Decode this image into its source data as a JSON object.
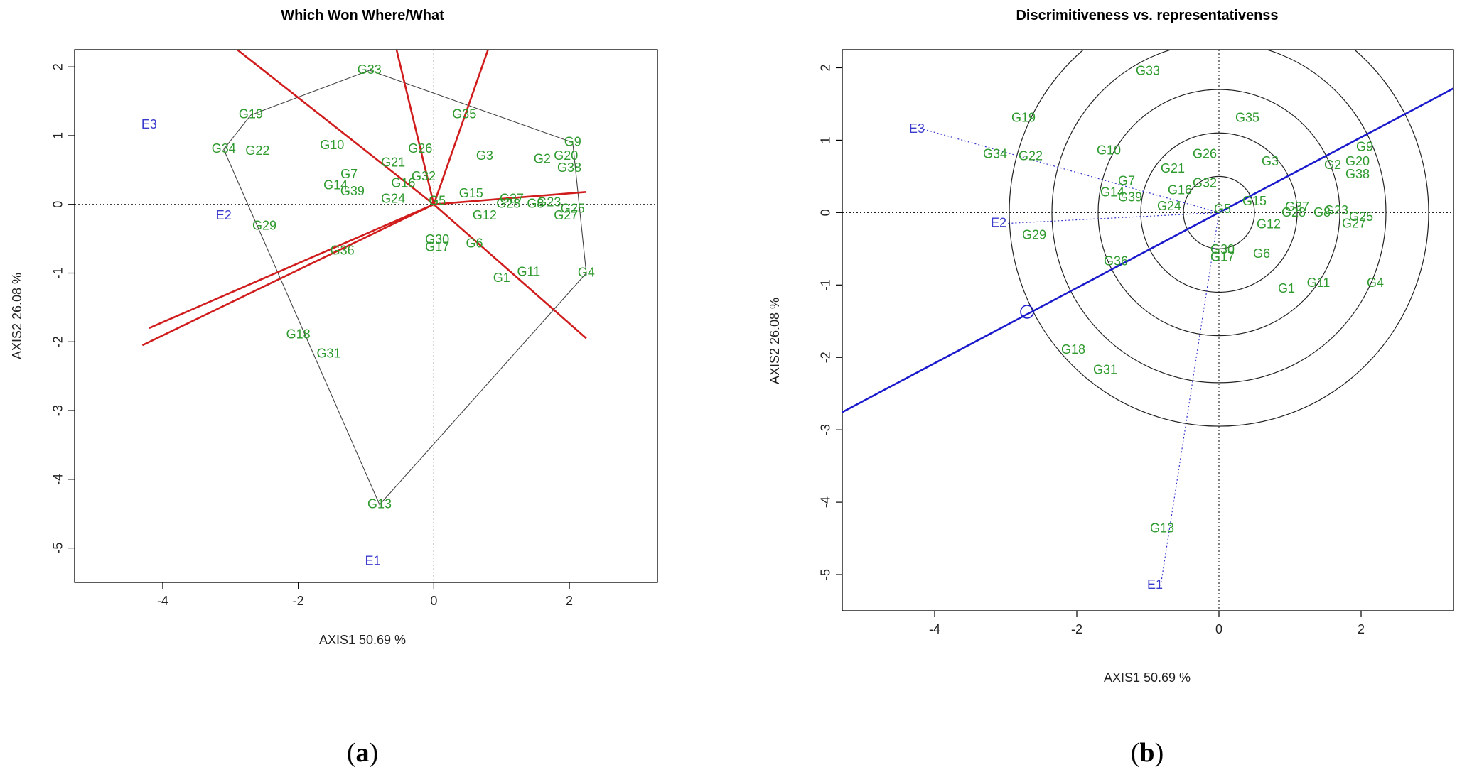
{
  "panels": [
    {
      "open": "(",
      "letter": "a",
      "close": ")"
    },
    {
      "open": "(",
      "letter": "b",
      "close": ")"
    }
  ],
  "chart_data": [
    {
      "type": "scatter",
      "subtype": "GGE biplot - which won where/what",
      "title": "Which Won Where/What",
      "xlabel": "AXIS1 50.69 %",
      "ylabel": "AXIS2 26.08 %",
      "xlim": [
        -5.3,
        3.3
      ],
      "ylim": [
        -5.5,
        2.25
      ],
      "xticks": [
        -4,
        -2,
        0,
        2
      ],
      "yticks": [
        -5,
        -4,
        -3,
        -2,
        -1,
        0,
        1,
        2
      ],
      "reference_lines": {
        "x": 0,
        "y": 0,
        "style": "dotted"
      },
      "genotypes": [
        {
          "label": "G33",
          "x": -0.95,
          "y": 1.95
        },
        {
          "label": "G19",
          "x": -2.7,
          "y": 1.3
        },
        {
          "label": "G34",
          "x": -3.1,
          "y": 0.8
        },
        {
          "label": "G22",
          "x": -2.6,
          "y": 0.77
        },
        {
          "label": "G10",
          "x": -1.5,
          "y": 0.85
        },
        {
          "label": "G26",
          "x": -0.2,
          "y": 0.8
        },
        {
          "label": "G35",
          "x": 0.45,
          "y": 1.3
        },
        {
          "label": "G3",
          "x": 0.75,
          "y": 0.7
        },
        {
          "label": "G9",
          "x": 2.05,
          "y": 0.9
        },
        {
          "label": "G2",
          "x": 1.6,
          "y": 0.65
        },
        {
          "label": "G20",
          "x": 1.95,
          "y": 0.7
        },
        {
          "label": "G38",
          "x": 2.0,
          "y": 0.52
        },
        {
          "label": "G21",
          "x": -0.6,
          "y": 0.6
        },
        {
          "label": "G7",
          "x": -1.25,
          "y": 0.43
        },
        {
          "label": "G32",
          "x": -0.15,
          "y": 0.4
        },
        {
          "label": "G16",
          "x": -0.45,
          "y": 0.3
        },
        {
          "label": "G14",
          "x": -1.45,
          "y": 0.27
        },
        {
          "label": "G39",
          "x": -1.2,
          "y": 0.18
        },
        {
          "label": "G24",
          "x": -0.6,
          "y": 0.07
        },
        {
          "label": "G5",
          "x": 0.05,
          "y": 0.04
        },
        {
          "label": "G15",
          "x": 0.55,
          "y": 0.15
        },
        {
          "label": "G37",
          "x": 1.15,
          "y": 0.07
        },
        {
          "label": "G28",
          "x": 1.1,
          "y": 0.0
        },
        {
          "label": "G8",
          "x": 1.5,
          "y": 0.0
        },
        {
          "label": "G23",
          "x": 1.7,
          "y": 0.02
        },
        {
          "label": "G25",
          "x": 2.05,
          "y": -0.07
        },
        {
          "label": "G27",
          "x": 1.95,
          "y": -0.17
        },
        {
          "label": "G12",
          "x": 0.75,
          "y": -0.17
        },
        {
          "label": "G29",
          "x": -2.5,
          "y": -0.32
        },
        {
          "label": "G30",
          "x": 0.05,
          "y": -0.52
        },
        {
          "label": "G17",
          "x": 0.05,
          "y": -0.63
        },
        {
          "label": "G6",
          "x": 0.6,
          "y": -0.58
        },
        {
          "label": "G36",
          "x": -1.35,
          "y": -0.68
        },
        {
          "label": "G1",
          "x": 1.0,
          "y": -1.08
        },
        {
          "label": "G11",
          "x": 1.4,
          "y": -0.99
        },
        {
          "label": "G4",
          "x": 2.25,
          "y": -1.0
        },
        {
          "label": "G18",
          "x": -2.0,
          "y": -1.9
        },
        {
          "label": "G31",
          "x": -1.55,
          "y": -2.18
        },
        {
          "label": "G13",
          "x": -0.8,
          "y": -4.37
        }
      ],
      "environments": [
        {
          "label": "E3",
          "x": -4.2,
          "y": 1.15
        },
        {
          "label": "E2",
          "x": -3.1,
          "y": -0.17
        },
        {
          "label": "E1",
          "x": -0.9,
          "y": -5.2
        }
      ],
      "polygon_vertices": [
        "G33",
        "G9",
        "G4",
        "G13",
        "G34",
        "G19"
      ],
      "sector_rays_to": [
        [
          -2.9,
          2.25
        ],
        [
          -0.55,
          2.25
        ],
        [
          0.8,
          2.25
        ],
        [
          2.25,
          0.18
        ],
        [
          2.25,
          -1.95
        ],
        [
          -4.3,
          -2.05
        ],
        [
          -4.2,
          -1.8
        ]
      ]
    },
    {
      "type": "scatter",
      "subtype": "GGE biplot - discriminativeness vs representativeness",
      "title": "Discrimitiveness vs. representativenss",
      "xlabel": "AXIS1 50.69 %",
      "ylabel": "AXIS2 26.08 %",
      "xlim": [
        -5.3,
        3.3
      ],
      "ylim": [
        -5.5,
        2.25
      ],
      "xticks": [
        -4,
        -2,
        0,
        2
      ],
      "yticks": [
        -5,
        -4,
        -3,
        -2,
        -1,
        0,
        1,
        2
      ],
      "reference_lines": {
        "x": 0,
        "y": 0,
        "style": "dotted"
      },
      "concentric_circle_radii": [
        0.5,
        1.1,
        1.7,
        2.35,
        2.95
      ],
      "average_environment_axis": {
        "slope": 0.52,
        "marker_at": [
          -2.7,
          -1.37
        ]
      },
      "genotypes": [
        {
          "label": "G33",
          "x": -1.0,
          "y": 1.95
        },
        {
          "label": "G19",
          "x": -2.75,
          "y": 1.3
        },
        {
          "label": "G34",
          "x": -3.15,
          "y": 0.8
        },
        {
          "label": "G22",
          "x": -2.65,
          "y": 0.77
        },
        {
          "label": "G10",
          "x": -1.55,
          "y": 0.85
        },
        {
          "label": "G26",
          "x": -0.2,
          "y": 0.8
        },
        {
          "label": "G35",
          "x": 0.4,
          "y": 1.3
        },
        {
          "label": "G3",
          "x": 0.72,
          "y": 0.7
        },
        {
          "label": "G9",
          "x": 2.05,
          "y": 0.9
        },
        {
          "label": "G2",
          "x": 1.6,
          "y": 0.65
        },
        {
          "label": "G20",
          "x": 1.95,
          "y": 0.7
        },
        {
          "label": "G38",
          "x": 1.95,
          "y": 0.52
        },
        {
          "label": "G21",
          "x": -0.65,
          "y": 0.6
        },
        {
          "label": "G7",
          "x": -1.3,
          "y": 0.43
        },
        {
          "label": "G32",
          "x": -0.2,
          "y": 0.4
        },
        {
          "label": "G16",
          "x": -0.55,
          "y": 0.3
        },
        {
          "label": "G14",
          "x": -1.5,
          "y": 0.27
        },
        {
          "label": "G39",
          "x": -1.25,
          "y": 0.2
        },
        {
          "label": "G24",
          "x": -0.7,
          "y": 0.08
        },
        {
          "label": "G5",
          "x": 0.05,
          "y": 0.04
        },
        {
          "label": "G15",
          "x": 0.5,
          "y": 0.15
        },
        {
          "label": "G37",
          "x": 1.1,
          "y": 0.07
        },
        {
          "label": "G28",
          "x": 1.05,
          "y": -0.01
        },
        {
          "label": "G8",
          "x": 1.45,
          "y": -0.01
        },
        {
          "label": "G23",
          "x": 1.65,
          "y": 0.02
        },
        {
          "label": "G25",
          "x": 2.0,
          "y": -0.07
        },
        {
          "label": "G27",
          "x": 1.9,
          "y": -0.16
        },
        {
          "label": "G12",
          "x": 0.7,
          "y": -0.17
        },
        {
          "label": "G29",
          "x": -2.6,
          "y": -0.32
        },
        {
          "label": "G30",
          "x": 0.05,
          "y": -0.52
        },
        {
          "label": "G17",
          "x": 0.05,
          "y": -0.62
        },
        {
          "label": "G6",
          "x": 0.6,
          "y": -0.58
        },
        {
          "label": "G36",
          "x": -1.45,
          "y": -0.68
        },
        {
          "label": "G1",
          "x": 0.95,
          "y": -1.06
        },
        {
          "label": "G11",
          "x": 1.4,
          "y": -0.98
        },
        {
          "label": "G4",
          "x": 2.2,
          "y": -0.98
        },
        {
          "label": "G18",
          "x": -2.05,
          "y": -1.9
        },
        {
          "label": "G31",
          "x": -1.6,
          "y": -2.18
        },
        {
          "label": "G13",
          "x": -0.8,
          "y": -4.37
        }
      ],
      "environments": [
        {
          "label": "E3",
          "x": -4.25,
          "y": 1.15
        },
        {
          "label": "E2",
          "x": -3.1,
          "y": -0.15
        },
        {
          "label": "E1",
          "x": -0.9,
          "y": -5.15
        }
      ]
    }
  ]
}
